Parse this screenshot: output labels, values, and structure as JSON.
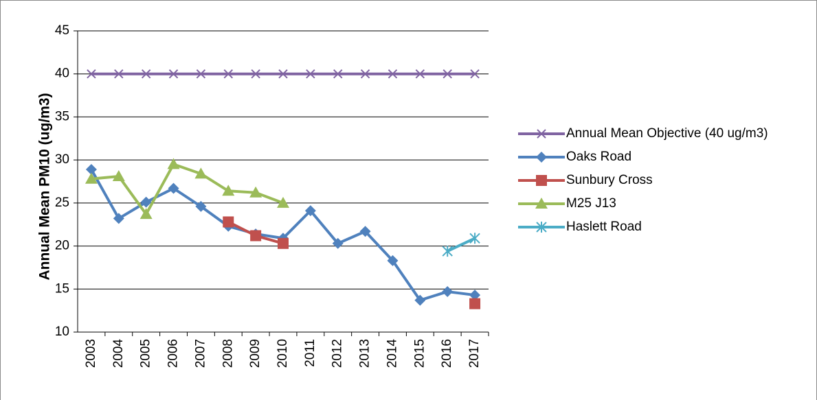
{
  "chart_data": {
    "type": "line",
    "y_label": "Annual Mean PM10 (ug/m3)",
    "categories": [
      "2003",
      "2004",
      "2005",
      "2006",
      "2007",
      "2008",
      "2009",
      "2010",
      "2011",
      "2012",
      "2013",
      "2014",
      "2015",
      "2016",
      "2017"
    ],
    "ylim": [
      10,
      45
    ],
    "yticks": [
      10,
      15,
      20,
      25,
      30,
      35,
      40,
      45
    ],
    "grid": true,
    "legend": "right",
    "series": [
      {
        "name": "Annual Mean Objective (40 ug/m3)",
        "color": "#8064a2",
        "marker": "x",
        "values": [
          40,
          40,
          40,
          40,
          40,
          40,
          40,
          40,
          40,
          40,
          40,
          40,
          40,
          40,
          40
        ]
      },
      {
        "name": "Oaks Road",
        "color": "#4f81bd",
        "marker": "diamond",
        "values": [
          28.9,
          23.2,
          25.1,
          26.7,
          24.6,
          22.3,
          21.4,
          20.9,
          24.1,
          20.3,
          21.7,
          18.3,
          13.7,
          14.7,
          14.3
        ]
      },
      {
        "name": "Sunbury Cross",
        "color": "#c0504d",
        "marker": "square",
        "values": [
          null,
          null,
          null,
          null,
          null,
          22.8,
          21.2,
          20.3,
          null,
          null,
          null,
          null,
          null,
          null,
          13.3
        ]
      },
      {
        "name": "M25 J13",
        "color": "#9bbb59",
        "marker": "triangle",
        "values": [
          27.8,
          28.1,
          23.7,
          29.5,
          28.4,
          26.4,
          26.2,
          25.0,
          null,
          null,
          null,
          null,
          null,
          null,
          null
        ]
      },
      {
        "name": "Haslett Road",
        "color": "#4bacc6",
        "marker": "star",
        "values": [
          null,
          null,
          null,
          null,
          null,
          null,
          null,
          null,
          null,
          null,
          null,
          null,
          null,
          19.4,
          20.9
        ]
      }
    ]
  }
}
